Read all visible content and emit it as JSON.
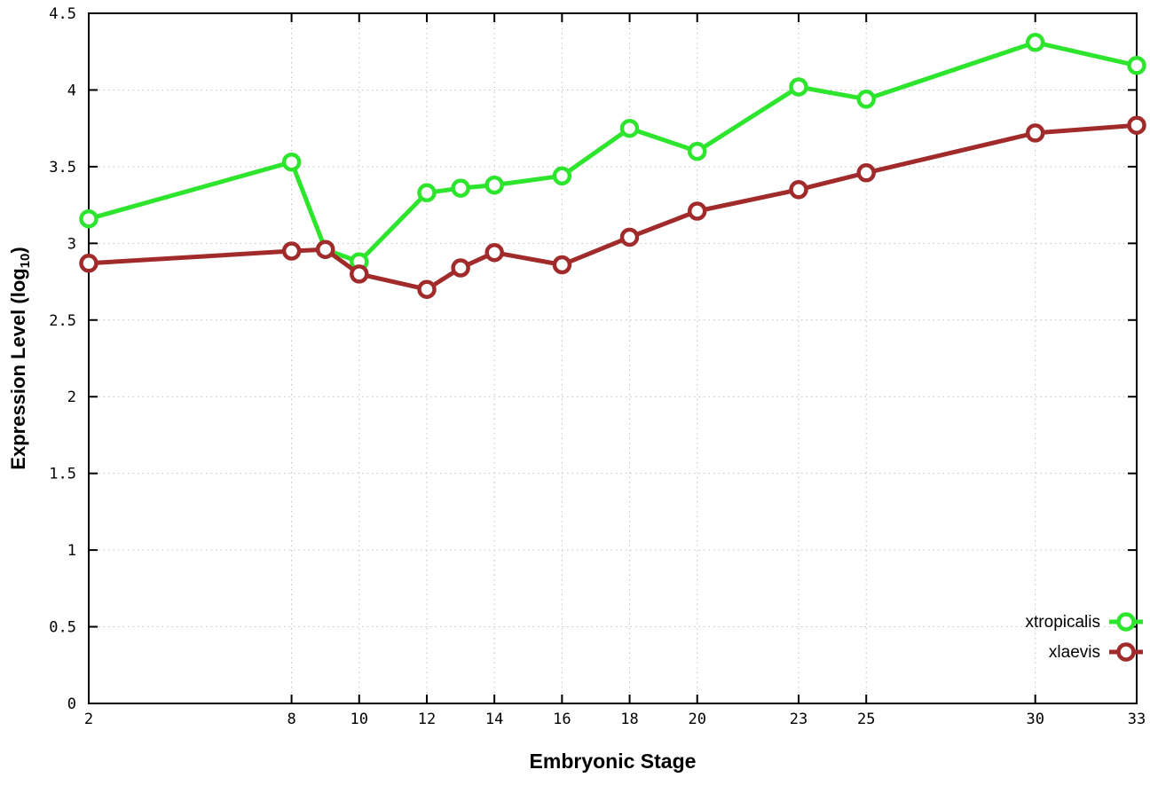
{
  "chart_data": {
    "type": "line",
    "title": "",
    "xlabel": "Embryonic Stage",
    "ylabel": "Expression Level (log10)",
    "ylabel_parts": {
      "pre": "Expression Level (log",
      "sub": "10",
      "post": ")"
    },
    "x": [
      2,
      8,
      9,
      10,
      12,
      13,
      14,
      16,
      18,
      20,
      23,
      25,
      30,
      33
    ],
    "series": [
      {
        "name": "xtropicalis",
        "color": "#2ee52e",
        "values": [
          3.16,
          3.53,
          2.96,
          2.88,
          3.33,
          3.36,
          3.38,
          3.44,
          3.75,
          3.6,
          4.02,
          3.94,
          4.31,
          4.16
        ]
      },
      {
        "name": "xlaevis",
        "color": "#a12a2a",
        "values": [
          2.87,
          2.95,
          2.96,
          2.8,
          2.7,
          2.84,
          2.94,
          2.86,
          3.04,
          3.21,
          3.35,
          3.46,
          3.72,
          3.77
        ]
      }
    ],
    "xticks": [
      2,
      8,
      10,
      12,
      14,
      16,
      18,
      20,
      23,
      25,
      30,
      33
    ],
    "yticks": [
      0,
      0.5,
      1,
      1.5,
      2,
      2.5,
      3,
      3.5,
      4,
      4.5
    ],
    "xlim": [
      2,
      33
    ],
    "ylim": [
      0,
      4.5
    ],
    "grid": true,
    "legend_position": "bottom-right",
    "style": {
      "grid_color": "#c0c0c0",
      "border_color": "#000000",
      "background": "#ffffff",
      "marker": "open-circle"
    }
  }
}
